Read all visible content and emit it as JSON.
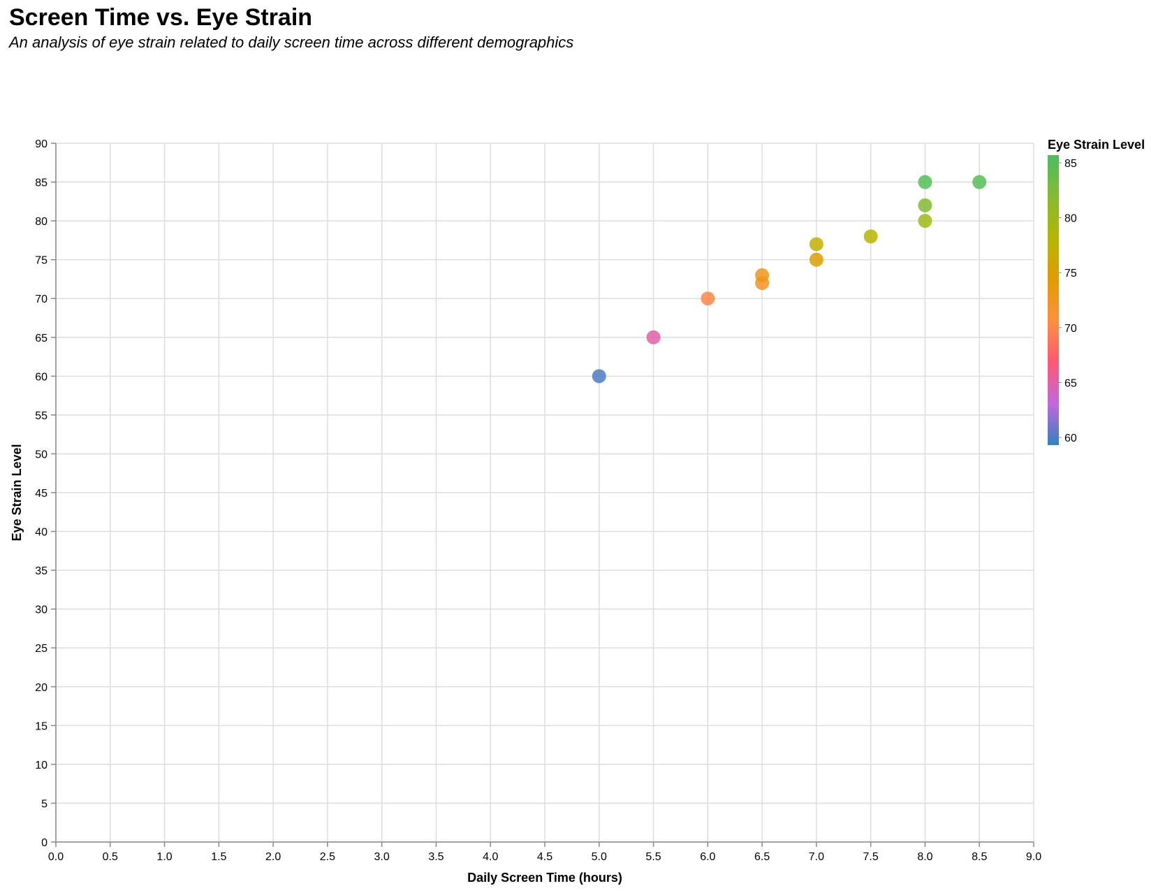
{
  "chart_data": {
    "type": "scatter",
    "title": "Screen Time vs. Eye Strain",
    "subtitle": "An analysis of eye strain related to daily screen time across different demographics",
    "xlabel": "Daily Screen Time (hours)",
    "ylabel": "Eye Strain Level",
    "xlim": [
      0,
      9
    ],
    "ylim": [
      0,
      90
    ],
    "x_ticks": [
      "0.0",
      "0.5",
      "1.0",
      "1.5",
      "2.0",
      "2.5",
      "3.0",
      "3.5",
      "4.0",
      "4.5",
      "5.0",
      "5.5",
      "6.0",
      "6.5",
      "7.0",
      "7.5",
      "8.0",
      "8.5",
      "9.0"
    ],
    "y_ticks": [
      "0",
      "5",
      "10",
      "15",
      "20",
      "25",
      "30",
      "35",
      "40",
      "45",
      "50",
      "55",
      "60",
      "65",
      "70",
      "75",
      "80",
      "85",
      "90"
    ],
    "grid": true,
    "legend": {
      "title": "Eye Strain Level",
      "position": "right",
      "labels": [
        "85",
        "80",
        "75",
        "70",
        "65",
        "60"
      ],
      "min": 59.3,
      "max": 85.7
    },
    "points": [
      {
        "x": 5.0,
        "y": 60
      },
      {
        "x": 5.5,
        "y": 65
      },
      {
        "x": 6.0,
        "y": 70
      },
      {
        "x": 6.5,
        "y": 72
      },
      {
        "x": 6.5,
        "y": 73
      },
      {
        "x": 7.0,
        "y": 75
      },
      {
        "x": 7.0,
        "y": 77
      },
      {
        "x": 7.5,
        "y": 78
      },
      {
        "x": 8.0,
        "y": 80
      },
      {
        "x": 8.0,
        "y": 82
      },
      {
        "x": 8.0,
        "y": 85
      },
      {
        "x": 8.5,
        "y": 85
      }
    ]
  },
  "colors": {
    "scale": [
      "#3182bd",
      "#c267e0",
      "#ff5872",
      "#ff8f3e",
      "#e29b00",
      "#b5b600",
      "#84bb30",
      "#4bbd5f"
    ],
    "grid": "#dddddd",
    "axis": "#888888"
  }
}
